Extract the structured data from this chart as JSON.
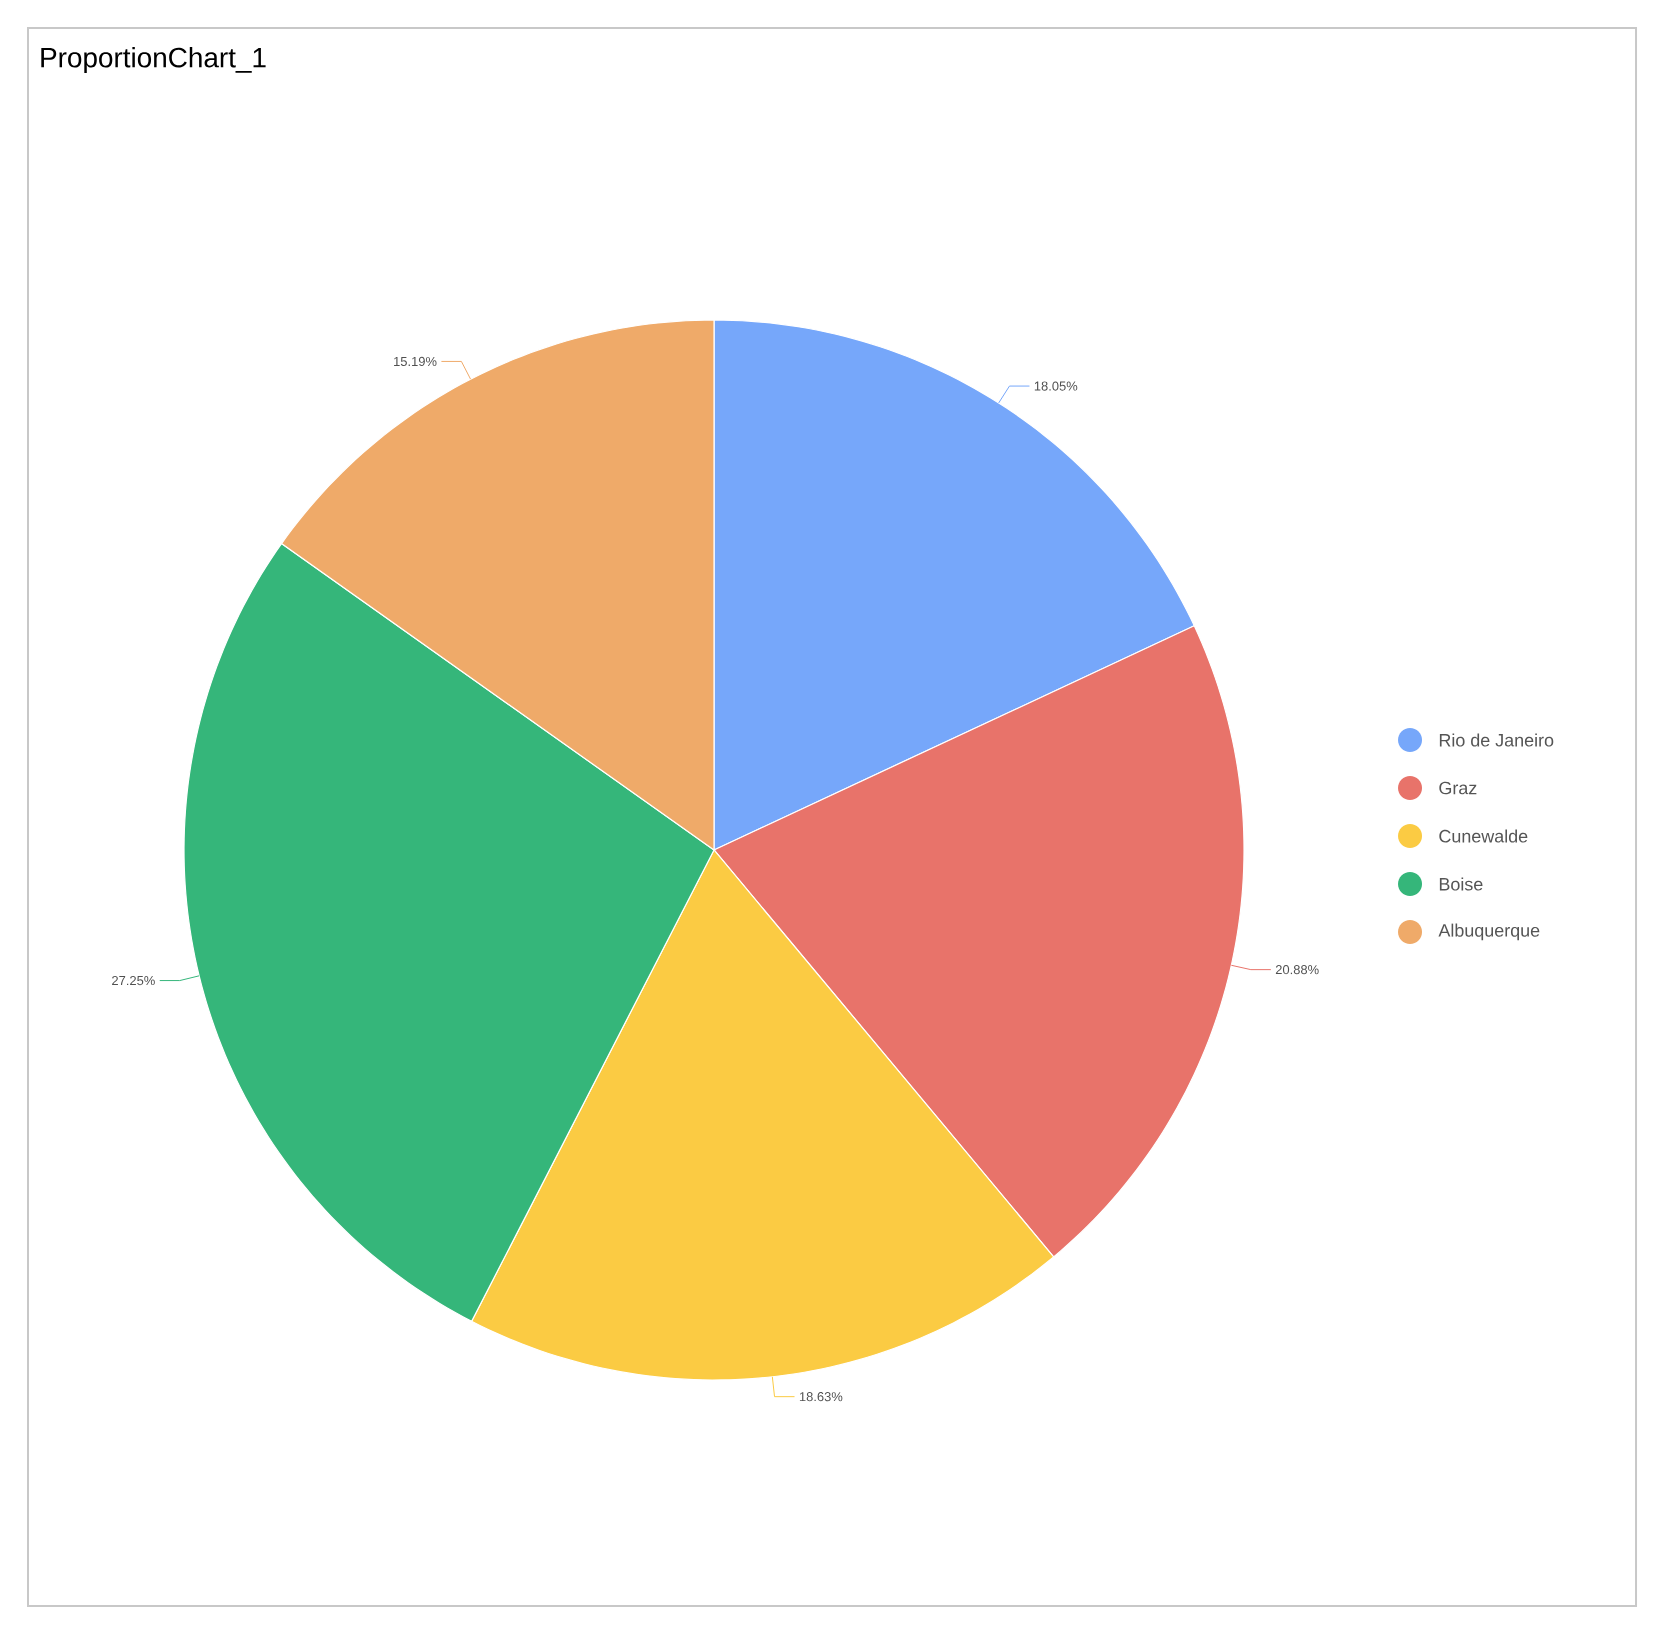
{
  "chart_data": {
    "type": "pie",
    "title": "ProportionChart_1",
    "categories": [
      "Rio de Janeiro",
      "Graz",
      "Cunewalde",
      "Boise",
      "Albuquerque"
    ],
    "values": [
      18.05,
      20.88,
      18.63,
      27.25,
      15.19
    ],
    "colors": [
      "#76a7fa",
      "#e8736a",
      "#fbcb43",
      "#35b67a",
      "#efaa69"
    ],
    "value_labels": [
      "18.05%",
      "20.88%",
      "18.63%",
      "27.25%",
      "15.19%"
    ],
    "legend": "right"
  }
}
